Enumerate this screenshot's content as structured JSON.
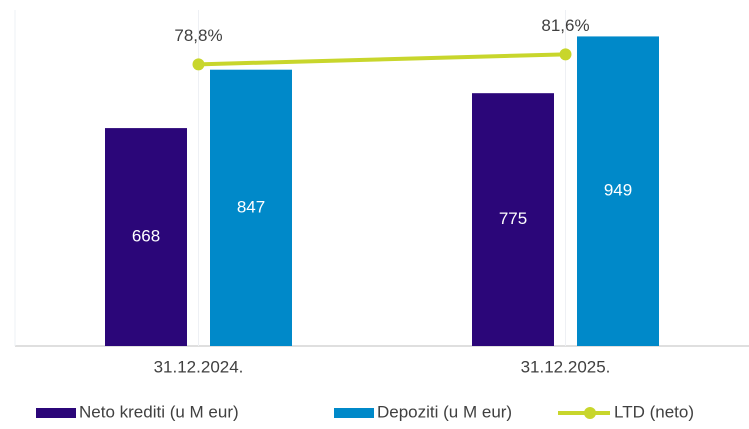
{
  "chart_data": {
    "type": "bar_line",
    "categories": [
      "31.12.2024.",
      "31.12.2025."
    ],
    "series": [
      {
        "name": "Neto krediti (u M eur)",
        "type": "bar",
        "color": "#2b0679",
        "values": [
          668,
          775
        ]
      },
      {
        "name": "Depoziti (u M eur)",
        "type": "bar",
        "color": "#0089c9",
        "values": [
          847,
          949
        ]
      },
      {
        "name": "LTD (neto)",
        "type": "line",
        "axis": "y2",
        "color": "#c8d62c",
        "values": [
          78.8,
          81.6
        ],
        "value_labels": [
          "78,8%",
          "81,6%"
        ]
      }
    ],
    "ylim": [
      0,
      1030
    ],
    "y2lim": [
      0,
      94
    ],
    "legend": "bottom"
  }
}
